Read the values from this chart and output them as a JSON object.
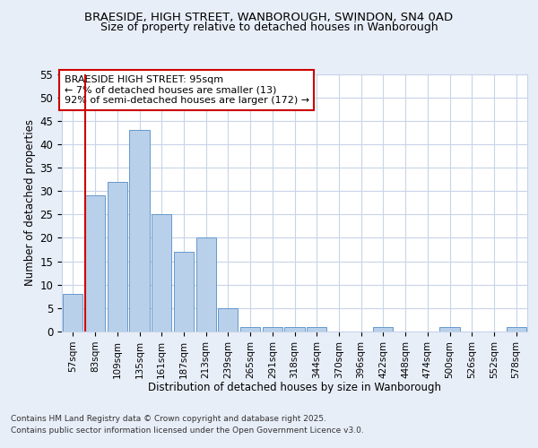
{
  "title_line1": "BRAESIDE, HIGH STREET, WANBOROUGH, SWINDON, SN4 0AD",
  "title_line2": "Size of property relative to detached houses in Wanborough",
  "xlabel": "Distribution of detached houses by size in Wanborough",
  "ylabel": "Number of detached properties",
  "categories": [
    "57sqm",
    "83sqm",
    "109sqm",
    "135sqm",
    "161sqm",
    "187sqm",
    "213sqm",
    "239sqm",
    "265sqm",
    "291sqm",
    "318sqm",
    "344sqm",
    "370sqm",
    "396sqm",
    "422sqm",
    "448sqm",
    "474sqm",
    "500sqm",
    "526sqm",
    "552sqm",
    "578sqm"
  ],
  "values": [
    8,
    29,
    32,
    43,
    25,
    17,
    20,
    5,
    1,
    1,
    1,
    1,
    0,
    0,
    1,
    0,
    0,
    1,
    0,
    0,
    1
  ],
  "bar_color": "#b8d0ea",
  "bar_edge_color": "#6699cc",
  "bar_edge_width": 0.7,
  "vline_x_idx": 1,
  "vline_color": "#cc0000",
  "annotation_title": "BRAESIDE HIGH STREET: 95sqm",
  "annotation_line2": "← 7% of detached houses are smaller (13)",
  "annotation_line3": "92% of semi-detached houses are larger (172) →",
  "annotation_box_color": "#ffffff",
  "annotation_box_edge": "#cc0000",
  "ylim": [
    0,
    55
  ],
  "yticks": [
    0,
    5,
    10,
    15,
    20,
    25,
    30,
    35,
    40,
    45,
    50,
    55
  ],
  "bg_color": "#e8eef8",
  "plot_bg_color": "#ffffff",
  "grid_color": "#c8d4e8",
  "footer_line1": "Contains HM Land Registry data © Crown copyright and database right 2025.",
  "footer_line2": "Contains public sector information licensed under the Open Government Licence v3.0."
}
